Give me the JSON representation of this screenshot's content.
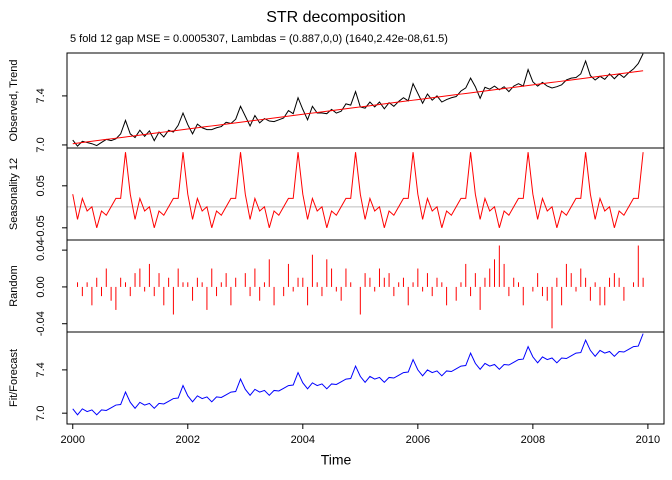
{
  "chart_data": {
    "type": "line",
    "title": "STR decomposition",
    "subtitle": "5 fold 12 gap MSE = 0.0005307, Lambdas = (0.887,0,0) (1640,2.42e-08,61.5)",
    "x_label": "Time",
    "xlim": [
      1999.9,
      2010.28
    ],
    "xticks": [
      2000,
      2002,
      2004,
      2006,
      2008,
      2010
    ],
    "x": [
      2000,
      2000.083,
      2000.167,
      2000.25,
      2000.333,
      2000.417,
      2000.5,
      2000.583,
      2000.667,
      2000.75,
      2000.833,
      2000.917,
      2001,
      2001.083,
      2001.167,
      2001.25,
      2001.333,
      2001.417,
      2001.5,
      2001.583,
      2001.667,
      2001.75,
      2001.833,
      2001.917,
      2002,
      2002.083,
      2002.167,
      2002.25,
      2002.333,
      2002.417,
      2002.5,
      2002.583,
      2002.667,
      2002.75,
      2002.833,
      2002.917,
      2003,
      2003.083,
      2003.167,
      2003.25,
      2003.333,
      2003.417,
      2003.5,
      2003.583,
      2003.667,
      2003.75,
      2003.833,
      2003.917,
      2004,
      2004.083,
      2004.167,
      2004.25,
      2004.333,
      2004.417,
      2004.5,
      2004.583,
      2004.667,
      2004.75,
      2004.833,
      2004.917,
      2005,
      2005.083,
      2005.167,
      2005.25,
      2005.333,
      2005.417,
      2005.5,
      2005.583,
      2005.667,
      2005.75,
      2005.833,
      2005.917,
      2006,
      2006.083,
      2006.167,
      2006.25,
      2006.333,
      2006.417,
      2006.5,
      2006.583,
      2006.667,
      2006.75,
      2006.833,
      2006.917,
      2007,
      2007.083,
      2007.167,
      2007.25,
      2007.333,
      2007.417,
      2007.5,
      2007.583,
      2007.667,
      2007.75,
      2007.833,
      2007.917,
      2008,
      2008.083,
      2008.167,
      2008.25,
      2008.333,
      2008.417,
      2008.5,
      2008.583,
      2008.667,
      2008.75,
      2008.833,
      2008.917,
      2009,
      2009.083,
      2009.167,
      2009.25,
      2009.333,
      2009.417,
      2009.5,
      2009.583,
      2009.667,
      2009.75,
      2009.833,
      2009.917
    ],
    "panels": [
      {
        "type": "line",
        "y_label": "Observed, Trend",
        "ylim": [
          6.975,
          7.75
        ],
        "yticks": [
          {
            "value": 7,
            "label": "7.0"
          },
          7.4
        ],
        "series": [
          {
            "color": "#000000",
            "values": [
              7.04,
              6.99,
              7.03,
              7.02,
              7.01,
              6.995,
              7.02,
              7.045,
              7.035,
              7.05,
              7.09,
              7.2,
              7.09,
              7.06,
              7.12,
              7.07,
              7.115,
              7.035,
              7.105,
              7.065,
              7.12,
              7.105,
              7.16,
              7.26,
              7.165,
              7.09,
              7.17,
              7.14,
              7.125,
              7.125,
              7.14,
              7.15,
              7.185,
              7.175,
              7.21,
              7.315,
              7.235,
              7.155,
              7.24,
              7.18,
              7.215,
              7.195,
              7.19,
              7.205,
              7.22,
              7.28,
              7.255,
              7.385,
              7.29,
              7.205,
              7.315,
              7.26,
              7.26,
              7.255,
              7.29,
              7.26,
              7.275,
              7.335,
              7.325,
              7.435,
              7.31,
              7.3,
              7.35,
              7.31,
              7.35,
              7.295,
              7.345,
              7.315,
              7.355,
              7.385,
              7.36,
              7.5,
              7.42,
              7.34,
              7.415,
              7.365,
              7.4,
              7.35,
              7.37,
              7.385,
              7.395,
              7.44,
              7.465,
              7.545,
              7.475,
              7.38,
              7.47,
              7.455,
              7.48,
              7.45,
              7.475,
              7.435,
              7.48,
              7.5,
              7.48,
              7.615,
              7.515,
              7.48,
              7.51,
              7.48,
              7.465,
              7.475,
              7.49,
              7.53,
              7.545,
              7.55,
              7.58,
              7.685,
              7.565,
              7.53,
              7.56,
              7.535,
              7.58,
              7.54,
              7.58,
              7.55,
              7.59,
              7.62,
              7.665,
              7.745
            ]
          },
          {
            "color": "#ff0000",
            "values": [
              7.01,
              7.015,
              7.02,
              7.025,
              7.03,
              7.035,
              7.04,
              7.045,
              7.05,
              7.055,
              7.06,
              7.065,
              7.07,
              7.075,
              7.08,
              7.085,
              7.09,
              7.095,
              7.1,
              7.105,
              7.11,
              7.115,
              7.12,
              7.125,
              7.13,
              7.135,
              7.14,
              7.145,
              7.15,
              7.155,
              7.16,
              7.165,
              7.17,
              7.175,
              7.18,
              7.185,
              7.19,
              7.195,
              7.2,
              7.205,
              7.21,
              7.215,
              7.22,
              7.225,
              7.23,
              7.235,
              7.24,
              7.245,
              7.25,
              7.255,
              7.26,
              7.265,
              7.27,
              7.275,
              7.28,
              7.285,
              7.29,
              7.295,
              7.3,
              7.305,
              7.31,
              7.315,
              7.32,
              7.325,
              7.33,
              7.335,
              7.34,
              7.345,
              7.35,
              7.355,
              7.36,
              7.365,
              7.37,
              7.375,
              7.38,
              7.385,
              7.39,
              7.395,
              7.4,
              7.405,
              7.41,
              7.415,
              7.42,
              7.425,
              7.43,
              7.435,
              7.44,
              7.445,
              7.45,
              7.455,
              7.46,
              7.465,
              7.47,
              7.475,
              7.48,
              7.485,
              7.49,
              7.495,
              7.5,
              7.505,
              7.51,
              7.515,
              7.52,
              7.525,
              7.53,
              7.535,
              7.54,
              7.545,
              7.55,
              7.555,
              7.56,
              7.565,
              7.57,
              7.575,
              7.58,
              7.585,
              7.59,
              7.595,
              7.6,
              7.605
            ]
          }
        ]
      },
      {
        "type": "line",
        "y_label": "Seasonality 12",
        "ylim": [
          -0.079,
          0.14
        ],
        "zero_line": true,
        "yticks": [
          -0.05,
          0.05
        ],
        "series": [
          {
            "color": "#ff0000",
            "values": [
              0.03,
              -0.03,
              0.02,
              -0.01,
              0,
              -0.05,
              -0.01,
              -0.02,
              0,
              0.02,
              0.02,
              0.13,
              0.03,
              -0.03,
              0.02,
              -0.01,
              0,
              -0.05,
              -0.01,
              -0.02,
              0,
              0.02,
              0.02,
              0.13,
              0.03,
              -0.03,
              0.02,
              -0.01,
              0,
              -0.05,
              -0.01,
              -0.02,
              0,
              0.02,
              0.02,
              0.13,
              0.03,
              -0.03,
              0.02,
              -0.01,
              0,
              -0.05,
              -0.01,
              -0.02,
              0,
              0.02,
              0.02,
              0.13,
              0.03,
              -0.03,
              0.02,
              -0.01,
              0,
              -0.05,
              -0.01,
              -0.02,
              0,
              0.02,
              0.02,
              0.13,
              0.03,
              -0.03,
              0.02,
              -0.01,
              0,
              -0.05,
              -0.01,
              -0.02,
              0,
              0.02,
              0.02,
              0.13,
              0.03,
              -0.03,
              0.02,
              -0.01,
              0,
              -0.05,
              -0.01,
              -0.02,
              0,
              0.02,
              0.02,
              0.13,
              0.03,
              -0.03,
              0.02,
              -0.01,
              0,
              -0.05,
              -0.01,
              -0.02,
              0,
              0.02,
              0.02,
              0.13,
              0.03,
              -0.03,
              0.02,
              -0.01,
              0,
              -0.05,
              -0.01,
              -0.02,
              0,
              0.02,
              0.02,
              0.13,
              0.03,
              -0.03,
              0.02,
              -0.01,
              0,
              -0.05,
              -0.01,
              -0.02,
              0,
              0.02,
              0.02,
              0.13
            ]
          }
        ]
      },
      {
        "type": "bar",
        "y_label": "Random",
        "ylim": [
          -0.049,
          0.051
        ],
        "yticks": [
          -0.04,
          {
            "value": 0,
            "label": "0.00"
          },
          0.04
        ],
        "series": [
          {
            "color": "#ff0000",
            "values": [
              0,
              0.005,
              -0.01,
              0.005,
              -0.02,
              0.01,
              -0.01,
              0.02,
              -0.015,
              -0.025,
              0.01,
              0.005,
              -0.01,
              0.015,
              0.02,
              -0.005,
              0.025,
              -0.01,
              0.015,
              -0.02,
              0.01,
              -0.03,
              0.02,
              0.005,
              0.005,
              -0.015,
              0.01,
              0.005,
              -0.025,
              0.02,
              -0.01,
              0.005,
              0.015,
              -0.02,
              0.01,
              0,
              0.015,
              -0.01,
              0.02,
              -0.015,
              0.005,
              0.03,
              -0.02,
              0,
              -0.01,
              0.025,
              -0.005,
              0.01,
              0.01,
              -0.02,
              0.035,
              0.005,
              -0.01,
              0.03,
              0.02,
              -0.005,
              -0.015,
              0.02,
              0.005,
              0,
              -0.03,
              0.015,
              0.01,
              -0.005,
              0.02,
              0.01,
              0.015,
              -0.01,
              0.005,
              0.01,
              -0.02,
              0.005,
              0.02,
              -0.005,
              0.015,
              -0.01,
              0.01,
              0.005,
              -0.02,
              0,
              -0.015,
              0.005,
              0.025,
              -0.01,
              0.015,
              -0.025,
              0.01,
              0.02,
              0.03,
              0.045,
              0.025,
              -0.01,
              0.01,
              0.005,
              -0.02,
              0,
              -0.005,
              0.015,
              -0.01,
              -0.015,
              -0.045,
              0.01,
              -0.02,
              0.025,
              0.015,
              -0.005,
              0.02,
              0.01,
              -0.015,
              0.005,
              -0.02,
              -0.02,
              0.01,
              0.015,
              0.01,
              -0.015,
              0,
              0.005,
              0.045,
              0.01
            ]
          }
        ]
      },
      {
        "type": "line",
        "y_label": "Fit/Forecast",
        "ylim": [
          6.9,
          7.75
        ],
        "yticks": [
          {
            "value": 7,
            "label": "7.0"
          },
          7.4
        ],
        "series": [
          {
            "color": "#0000ff",
            "values": [
              7.04,
              6.985,
              7.04,
              7.015,
              7.03,
              6.985,
              7.03,
              7.025,
              7.05,
              7.075,
              7.08,
              7.195,
              7.1,
              7.045,
              7.1,
              7.075,
              7.09,
              7.045,
              7.09,
              7.085,
              7.11,
              7.135,
              7.14,
              7.255,
              7.16,
              7.105,
              7.16,
              7.135,
              7.15,
              7.105,
              7.15,
              7.145,
              7.17,
              7.195,
              7.2,
              7.315,
              7.22,
              7.165,
              7.22,
              7.195,
              7.21,
              7.165,
              7.21,
              7.205,
              7.23,
              7.255,
              7.26,
              7.375,
              7.28,
              7.225,
              7.28,
              7.255,
              7.27,
              7.225,
              7.27,
              7.265,
              7.29,
              7.315,
              7.32,
              7.435,
              7.34,
              7.285,
              7.34,
              7.315,
              7.33,
              7.285,
              7.33,
              7.325,
              7.35,
              7.375,
              7.38,
              7.495,
              7.4,
              7.345,
              7.4,
              7.375,
              7.39,
              7.345,
              7.39,
              7.385,
              7.41,
              7.435,
              7.44,
              7.555,
              7.46,
              7.405,
              7.46,
              7.435,
              7.45,
              7.405,
              7.45,
              7.445,
              7.47,
              7.495,
              7.5,
              7.615,
              7.52,
              7.465,
              7.52,
              7.495,
              7.51,
              7.465,
              7.51,
              7.505,
              7.53,
              7.555,
              7.56,
              7.675,
              7.58,
              7.525,
              7.58,
              7.555,
              7.57,
              7.525,
              7.57,
              7.565,
              7.59,
              7.615,
              7.62,
              7.735
            ]
          }
        ]
      }
    ]
  }
}
